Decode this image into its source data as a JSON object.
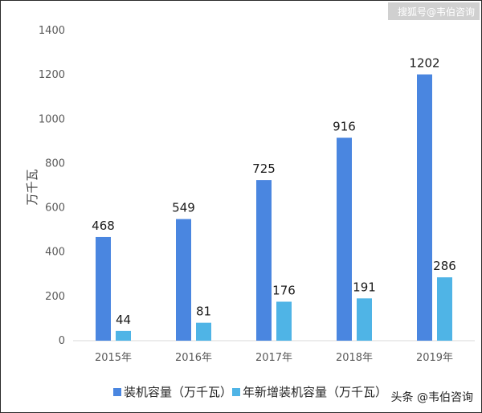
{
  "chart_data": {
    "type": "bar",
    "categories": [
      "2015年",
      "2016年",
      "2017年",
      "2018年",
      "2019年"
    ],
    "series": [
      {
        "name": "装机容量（万千瓦）",
        "values": [
          468,
          549,
          725,
          916,
          1202
        ],
        "color": "#4a86e0"
      },
      {
        "name": "年新增装机容量（万千瓦）",
        "values": [
          44,
          81,
          176,
          191,
          286
        ],
        "color": "#4fb4e6"
      }
    ],
    "ylabel": "万千瓦",
    "ylim": [
      0,
      1400
    ],
    "yticks": [
      0,
      200,
      400,
      600,
      800,
      1000,
      1200,
      1400
    ],
    "grid": false,
    "legend_position": "bottom"
  },
  "watermarks": {
    "top": "搜狐号@韦伯咨询",
    "bottom": "头条 @韦伯咨询"
  }
}
